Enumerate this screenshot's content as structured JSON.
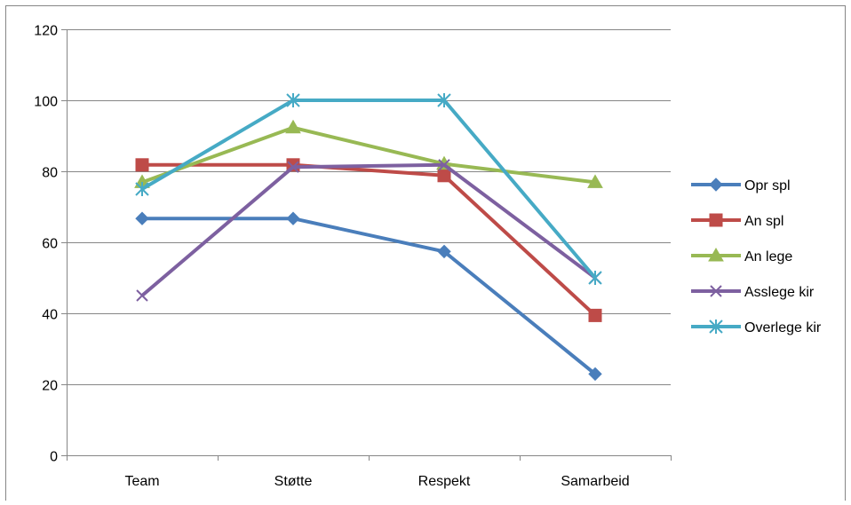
{
  "chart_data": {
    "type": "line",
    "categories": [
      "Team",
      "Støtte",
      "Respekt",
      "Samarbeid"
    ],
    "ylim": [
      0,
      120
    ],
    "yticks": [
      0,
      20,
      40,
      60,
      80,
      100,
      120
    ],
    "grid": true,
    "legend_position": "right",
    "series": [
      {
        "name": "Opr spl",
        "values": [
          66.7,
          66.7,
          57.4,
          22.9
        ],
        "color": "#4a7ebb",
        "marker": "diamond"
      },
      {
        "name": "An spl",
        "values": [
          81.8,
          81.8,
          78.8,
          39.4
        ],
        "color": "#be4b48",
        "marker": "square"
      },
      {
        "name": "An lege",
        "values": [
          76.9,
          92.3,
          82.1,
          76.9
        ],
        "color": "#98b954",
        "marker": "triangle"
      },
      {
        "name": "Asslege kir",
        "values": [
          45.0,
          81.2,
          81.8,
          50.0
        ],
        "color": "#7d60a0",
        "marker": "x"
      },
      {
        "name": "Overlege kir",
        "values": [
          75.0,
          100.0,
          100.0,
          50.0
        ],
        "color": "#46aac5",
        "marker": "star"
      }
    ]
  }
}
